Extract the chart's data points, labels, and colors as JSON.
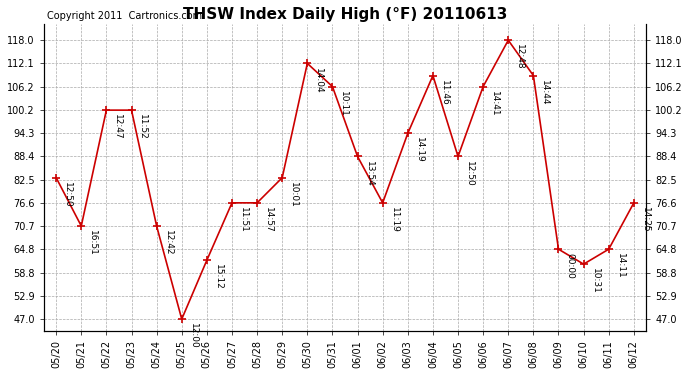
{
  "title": "THSW Index Daily High (°F) 20110613",
  "copyright": "Copyright 2011  Cartronics.com",
  "dates": [
    "05/20",
    "05/21",
    "05/22",
    "05/23",
    "05/24",
    "05/25",
    "05/26",
    "05/27",
    "05/28",
    "05/29",
    "05/30",
    "05/31",
    "06/01",
    "06/02",
    "06/03",
    "06/04",
    "06/05",
    "06/06",
    "06/07",
    "06/08",
    "06/09",
    "06/10",
    "06/11",
    "06/12"
  ],
  "values": [
    83.0,
    70.7,
    100.2,
    100.2,
    70.7,
    47.0,
    62.0,
    76.6,
    76.6,
    83.0,
    112.1,
    106.2,
    88.4,
    76.6,
    94.3,
    109.0,
    88.4,
    106.2,
    118.0,
    109.0,
    64.8,
    61.0,
    64.8,
    76.6
  ],
  "time_labels": [
    "12:50",
    "16:51",
    "12:47",
    "11:52",
    "12:42",
    "12:00",
    "15:12",
    "11:51",
    "14:57",
    "10:01",
    "14:04",
    "10:11",
    "13:54",
    "11:19",
    "14:19",
    "11:46",
    "12:50",
    "14:41",
    "12:48",
    "14:44",
    "00:00",
    "10:31",
    "14:11",
    "14:25"
  ],
  "yticks": [
    47.0,
    52.9,
    58.8,
    64.8,
    70.7,
    76.6,
    82.5,
    88.4,
    94.3,
    100.2,
    106.2,
    112.1,
    118.0
  ],
  "ylim": [
    44.0,
    122.0
  ],
  "line_color": "#cc0000",
  "marker_color": "#cc0000",
  "bg_color": "#ffffff",
  "grid_color": "#aaaaaa",
  "title_fontsize": 11,
  "label_fontsize": 7,
  "copyright_fontsize": 7,
  "annot_fontsize": 6.5
}
